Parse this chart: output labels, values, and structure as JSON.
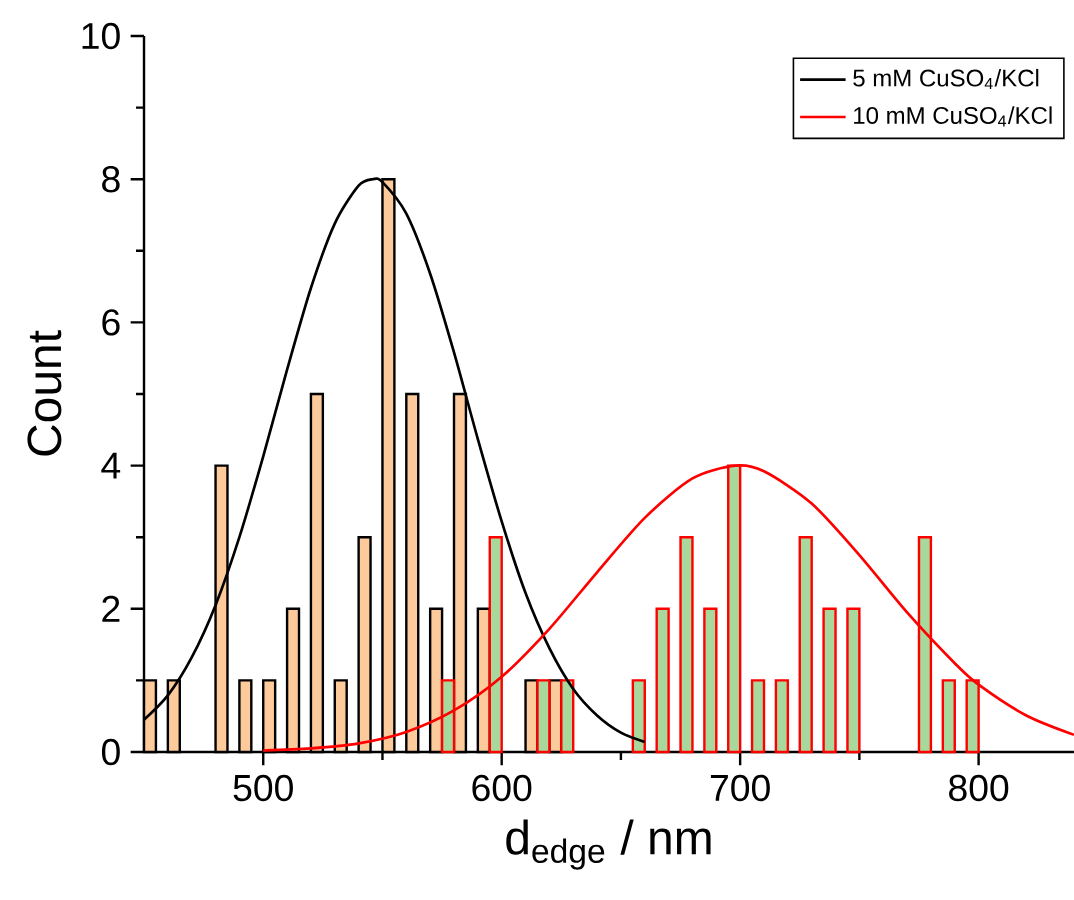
{
  "chart_data": {
    "type": "histogram",
    "xlabel": "d$_{edge}$ / nm",
    "ylabel": "Count",
    "bins": [
      450,
      460,
      470,
      480,
      490,
      500,
      510,
      520,
      530,
      540,
      550,
      560,
      570,
      580,
      590,
      600,
      610,
      620,
      630,
      640,
      650,
      660,
      670,
      680,
      690,
      700,
      710,
      720,
      730,
      740,
      750,
      760,
      770,
      780,
      790,
      800
    ],
    "series": [
      {
        "color": "#fdca9b",
        "values": [
          1,
          1,
          0,
          4,
          1,
          1,
          2,
          5,
          1,
          3,
          8,
          5,
          2,
          5,
          2,
          0,
          1,
          1,
          0,
          0,
          0,
          0,
          0,
          0,
          0,
          0,
          0,
          0,
          0,
          0,
          0,
          0,
          0,
          0,
          0
        ]
      },
      {
        "color": "#a8d89c",
        "values": [
          0,
          0,
          0,
          0,
          0,
          0,
          0,
          0,
          0,
          0,
          0,
          0,
          1,
          0,
          3,
          0,
          1,
          1,
          0,
          0,
          1,
          2,
          3,
          2,
          4,
          1,
          1,
          3,
          2,
          2,
          0,
          0,
          3,
          1,
          1
        ]
      },
      {
        "type": "line",
        "name": "5 mM CuSO$_{4}$/KCl",
        "color": "#000000",
        "x": [
          450,
          460,
          470,
          480,
          490,
          500,
          510,
          520,
          530,
          540,
          546,
          550,
          560,
          570,
          580,
          590,
          600,
          610,
          620,
          630,
          640,
          650,
          660
        ],
        "values": [
          0.45,
          0.79,
          1.32,
          2.05,
          3.0,
          4.13,
          5.34,
          6.48,
          7.38,
          7.91,
          8,
          7.96,
          7.52,
          6.68,
          5.58,
          4.37,
          3.22,
          2.22,
          1.45,
          0.88,
          0.51,
          0.27,
          0.14
        ]
      },
      {
        "type": "line",
        "name": "10 mM CuSO$_{4}$/KCl",
        "color": "#ff0000",
        "x": [
          500,
          520,
          540,
          560,
          580,
          600,
          620,
          640,
          660,
          680,
          698,
          710,
          730,
          750,
          770,
          790,
          800,
          820,
          840
        ],
        "values": [
          0.02,
          0.05,
          0.12,
          0.28,
          0.58,
          1.05,
          1.72,
          2.51,
          3.27,
          3.82,
          4,
          3.92,
          3.47,
          2.75,
          1.95,
          1.24,
          0.94,
          0.51,
          0.24
        ]
      }
    ],
    "xlim": [
      450,
      840
    ],
    "ylim": [
      0,
      10
    ],
    "xticks": [
      500,
      600,
      700,
      800
    ],
    "yticks": [
      0,
      2,
      4,
      6,
      8,
      10
    ],
    "legend": "top right"
  }
}
